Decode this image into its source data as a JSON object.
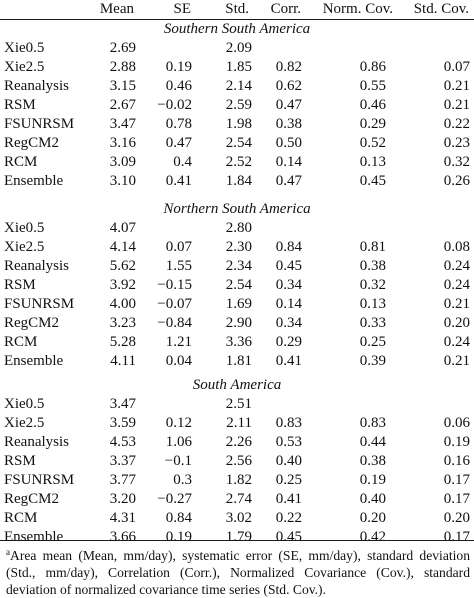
{
  "columns": [
    "Mean",
    "SE",
    "Std.",
    "Corr.",
    "Norm. Cov.",
    "Std. Cov."
  ],
  "sections": [
    {
      "title": "Southern South America",
      "rows": [
        {
          "name": "Xie0.5",
          "values": [
            "2.69",
            "",
            "2.09",
            "",
            "",
            ""
          ]
        },
        {
          "name": "Xie2.5",
          "values": [
            "2.88",
            "0.19",
            "1.85",
            "0.82",
            "0.86",
            "0.07"
          ]
        },
        {
          "name": "Reanalysis",
          "values": [
            "3.15",
            "0.46",
            "2.14",
            "0.62",
            "0.55",
            "0.21"
          ]
        },
        {
          "name": "RSM",
          "values": [
            "2.67",
            "−0.02",
            "2.59",
            "0.47",
            "0.46",
            "0.21"
          ]
        },
        {
          "name": "FSUNRSM",
          "values": [
            "3.47",
            "0.78",
            "1.98",
            "0.38",
            "0.29",
            "0.22"
          ]
        },
        {
          "name": "RegCM2",
          "values": [
            "3.16",
            "0.47",
            "2.54",
            "0.50",
            "0.52",
            "0.23"
          ]
        },
        {
          "name": "RCM",
          "values": [
            "3.09",
            "0.4",
            "2.52",
            "0.14",
            "0.13",
            "0.32"
          ]
        },
        {
          "name": "Ensemble",
          "values": [
            "3.10",
            "0.41",
            "1.84",
            "0.47",
            "0.45",
            "0.26"
          ]
        }
      ]
    },
    {
      "title": "Northern South America",
      "rows": [
        {
          "name": "Xie0.5",
          "values": [
            "4.07",
            "",
            "2.80",
            "",
            "",
            ""
          ]
        },
        {
          "name": "Xie2.5",
          "values": [
            "4.14",
            "0.07",
            "2.30",
            "0.84",
            "0.81",
            "0.08"
          ]
        },
        {
          "name": "Reanalysis",
          "values": [
            "5.62",
            "1.55",
            "2.34",
            "0.45",
            "0.38",
            "0.24"
          ]
        },
        {
          "name": "RSM",
          "values": [
            "3.92",
            "−0.15",
            "2.54",
            "0.34",
            "0.32",
            "0.24"
          ]
        },
        {
          "name": "FSUNRSM",
          "values": [
            "4.00",
            "−0.07",
            "1.69",
            "0.14",
            "0.13",
            "0.21"
          ]
        },
        {
          "name": "RegCM2",
          "values": [
            "3.23",
            "−0.84",
            "2.90",
            "0.34",
            "0.33",
            "0.20"
          ]
        },
        {
          "name": "RCM",
          "values": [
            "5.28",
            "1.21",
            "3.36",
            "0.29",
            "0.25",
            "0.24"
          ]
        },
        {
          "name": "Ensemble",
          "values": [
            "4.11",
            "0.04",
            "1.81",
            "0.41",
            "0.39",
            "0.21"
          ]
        }
      ]
    },
    {
      "title": "South America",
      "rows": [
        {
          "name": "Xie0.5",
          "values": [
            "3.47",
            "",
            "2.51",
            "",
            "",
            ""
          ]
        },
        {
          "name": "Xie2.5",
          "values": [
            "3.59",
            "0.12",
            "2.11",
            "0.83",
            "0.83",
            "0.06"
          ]
        },
        {
          "name": "Reanalysis",
          "values": [
            "4.53",
            "1.06",
            "2.26",
            "0.53",
            "0.44",
            "0.19"
          ]
        },
        {
          "name": "RSM",
          "values": [
            "3.37",
            "−0.1",
            "2.56",
            "0.40",
            "0.38",
            "0.16"
          ]
        },
        {
          "name": "FSUNRSM",
          "values": [
            "3.77",
            "0.3",
            "1.82",
            "0.25",
            "0.19",
            "0.17"
          ]
        },
        {
          "name": "RegCM2",
          "values": [
            "3.20",
            "−0.27",
            "2.74",
            "0.41",
            "0.40",
            "0.17"
          ]
        },
        {
          "name": "RCM",
          "values": [
            "4.31",
            "0.84",
            "3.02",
            "0.22",
            "0.20",
            "0.20"
          ]
        },
        {
          "name": "Ensemble",
          "values": [
            "3.66",
            "0.19",
            "1.79",
            "0.45",
            "0.42",
            "0.17"
          ]
        }
      ]
    }
  ],
  "footnote": {
    "marker": "a",
    "text": "Area mean (Mean, mm/day), systematic error (SE, mm/day), standard deviation (Std., mm/day), Correlation (Corr.), Normalized Covariance (Cov.), standard deviation of normalized covariance time series (Std. Cov.)."
  }
}
